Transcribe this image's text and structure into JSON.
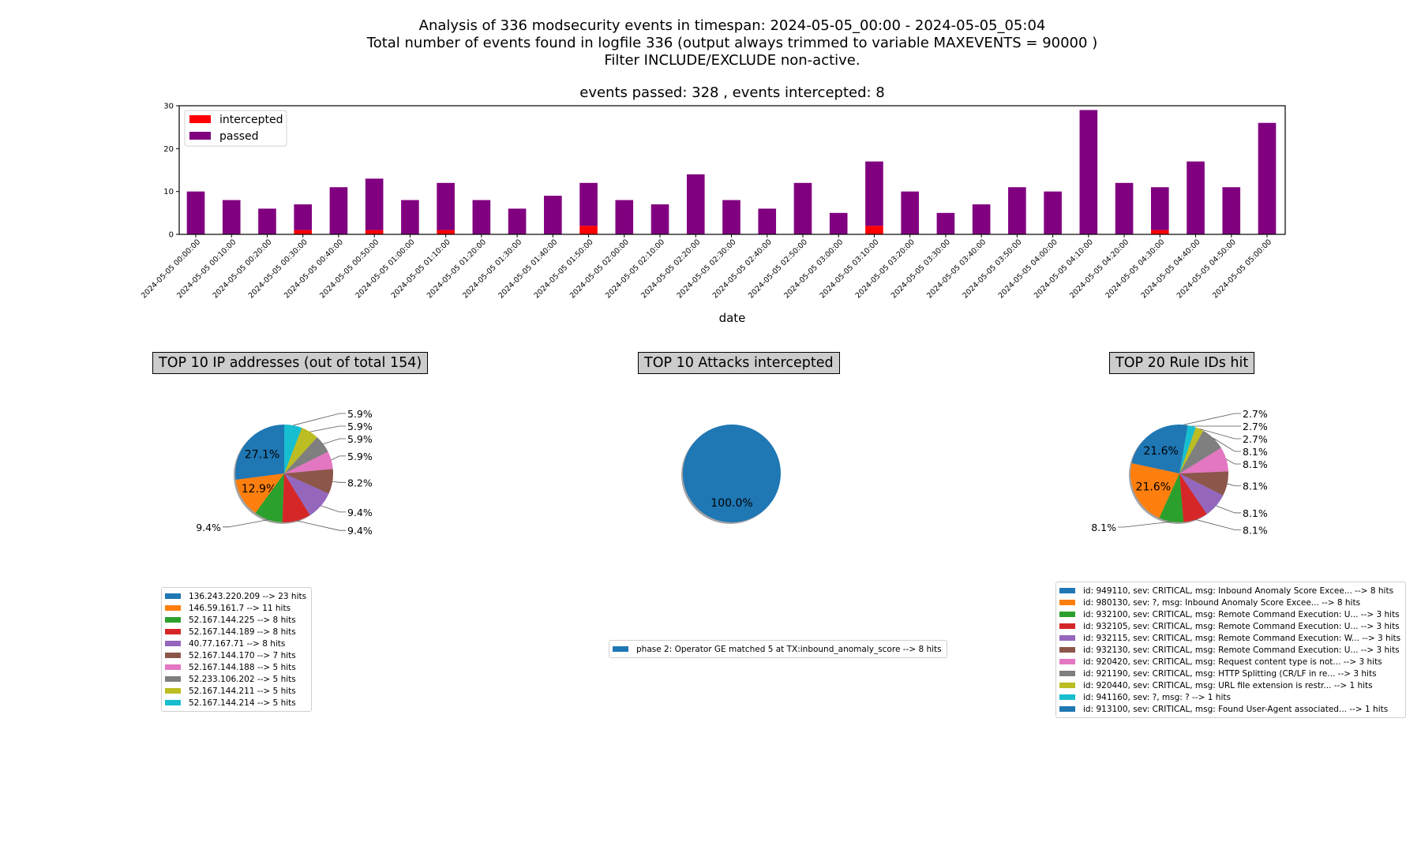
{
  "header": {
    "line1": "Analysis of 336 modsecurity events in timespan: 2024-05-05_00:00 - 2024-05-05_05:04",
    "line2": "Total number of events found in logfile 336 (output always trimmed to variable MAXEVENTS = 90000 )",
    "line3": "Filter INCLUDE/EXCLUDE non-active."
  },
  "chart_data": [
    {
      "type": "bar",
      "stacked": true,
      "title": "events passed: 328 , events intercepted: 8",
      "xlabel": "date",
      "ylabel": "",
      "ylim": [
        0,
        30
      ],
      "yticks": [
        0,
        10,
        20,
        30
      ],
      "legend_placement": "top-left",
      "categories": [
        "2024-05-05 00:00:00",
        "2024-05-05 00:10:00",
        "2024-05-05 00:20:00",
        "2024-05-05 00:30:00",
        "2024-05-05 00:40:00",
        "2024-05-05 00:50:00",
        "2024-05-05 01:00:00",
        "2024-05-05 01:10:00",
        "2024-05-05 01:20:00",
        "2024-05-05 01:30:00",
        "2024-05-05 01:40:00",
        "2024-05-05 01:50:00",
        "2024-05-05 02:00:00",
        "2024-05-05 02:10:00",
        "2024-05-05 02:20:00",
        "2024-05-05 02:30:00",
        "2024-05-05 02:40:00",
        "2024-05-05 02:50:00",
        "2024-05-05 03:00:00",
        "2024-05-05 03:10:00",
        "2024-05-05 03:20:00",
        "2024-05-05 03:30:00",
        "2024-05-05 03:40:00",
        "2024-05-05 03:50:00",
        "2024-05-05 04:00:00",
        "2024-05-05 04:10:00",
        "2024-05-05 04:20:00",
        "2024-05-05 04:30:00",
        "2024-05-05 04:40:00",
        "2024-05-05 04:50:00",
        "2024-05-05 05:00:00"
      ],
      "series": [
        {
          "name": "intercepted",
          "color": "#ff0000",
          "values": [
            0,
            0,
            0,
            1,
            0,
            1,
            0,
            1,
            0,
            0,
            0,
            2,
            0,
            0,
            0,
            0,
            0,
            0,
            0,
            2,
            0,
            0,
            0,
            0,
            0,
            0,
            0,
            1,
            0,
            0,
            0
          ]
        },
        {
          "name": "passed",
          "color": "#800080",
          "values": [
            10,
            8,
            6,
            6,
            11,
            12,
            8,
            11,
            8,
            6,
            9,
            10,
            8,
            7,
            14,
            8,
            6,
            12,
            5,
            15,
            10,
            5,
            7,
            11,
            10,
            29,
            12,
            10,
            17,
            11,
            26
          ]
        }
      ]
    },
    {
      "type": "pie",
      "title": "TOP 10 IP addresses (out of total 154)",
      "labels": [
        "136.243.220.209",
        "146.59.161.7",
        "52.167.144.225",
        "52.167.144.189",
        "40.77.167.71",
        "52.167.144.170",
        "52.167.144.188",
        "52.233.106.202",
        "52.167.144.211",
        "52.167.144.214"
      ],
      "values": [
        23,
        11,
        8,
        8,
        8,
        7,
        5,
        5,
        5,
        5
      ],
      "pct_labels": [
        "27.1%",
        "12.9%",
        "9.4%",
        "9.4%",
        "9.4%",
        "8.2%",
        "5.9%",
        "5.9%",
        "5.9%",
        "5.9%"
      ],
      "legend": [
        "136.243.220.209 --> 23 hits",
        "146.59.161.7 --> 11 hits",
        "52.167.144.225 --> 8 hits",
        "52.167.144.189 --> 8 hits",
        "40.77.167.71 --> 8 hits",
        "52.167.144.170 --> 7 hits",
        "52.167.144.188 --> 5 hits",
        "52.233.106.202 --> 5 hits",
        "52.167.144.211 --> 5 hits",
        "52.167.144.214 --> 5 hits"
      ],
      "colors": [
        "#1f77b4",
        "#ff7f0e",
        "#2ca02c",
        "#d62728",
        "#9467bd",
        "#8c564b",
        "#e377c2",
        "#7f7f7f",
        "#bcbd22",
        "#17becf"
      ]
    },
    {
      "type": "pie",
      "title": "TOP 10 Attacks intercepted",
      "labels": [
        "phase 2: Operator GE matched 5 at TX:inbound_anomaly_score"
      ],
      "values": [
        8
      ],
      "pct_labels": [
        "100.0%"
      ],
      "legend": [
        "phase 2: Operator GE matched 5 at TX:inbound_anomaly_score --> 8 hits"
      ],
      "colors": [
        "#1f77b4"
      ]
    },
    {
      "type": "pie",
      "title": "TOP 20 Rule IDs hit",
      "labels": [
        "949110",
        "980130",
        "932100",
        "932105",
        "932115",
        "932130",
        "920420",
        "921190",
        "920440",
        "941160",
        "913100"
      ],
      "values": [
        8,
        8,
        3,
        3,
        3,
        3,
        3,
        3,
        1,
        1,
        1
      ],
      "pct_labels": [
        "21.6%",
        "21.6%",
        "8.1%",
        "8.1%",
        "8.1%",
        "8.1%",
        "8.1%",
        "8.1%",
        "2.7%",
        "2.7%",
        "2.7%"
      ],
      "legend": [
        "id: 949110, sev: CRITICAL, msg: Inbound Anomaly Score Excee... --> 8 hits",
        "id: 980130, sev: ?, msg: Inbound Anomaly Score Excee... --> 8 hits",
        "id: 932100, sev: CRITICAL, msg: Remote Command Execution: U... --> 3 hits",
        "id: 932105, sev: CRITICAL, msg: Remote Command Execution: U... --> 3 hits",
        "id: 932115, sev: CRITICAL, msg: Remote Command Execution: W... --> 3 hits",
        "id: 932130, sev: CRITICAL, msg: Remote Command Execution: U... --> 3 hits",
        "id: 920420, sev: CRITICAL, msg: Request content type is not... --> 3 hits",
        "id: 921190, sev: CRITICAL, msg: HTTP Splitting (CR/LF in re... --> 3 hits",
        "id: 920440, sev: CRITICAL, msg: URL file extension is restr... --> 1 hits",
        "id: 941160, sev: ?, msg: ? --> 1 hits",
        "id: 913100, sev: CRITICAL, msg: Found User-Agent associated... --> 1 hits"
      ],
      "colors": [
        "#1f77b4",
        "#ff7f0e",
        "#2ca02c",
        "#d62728",
        "#9467bd",
        "#8c564b",
        "#e377c2",
        "#7f7f7f",
        "#bcbd22",
        "#17becf",
        "#1f77b4"
      ]
    }
  ]
}
